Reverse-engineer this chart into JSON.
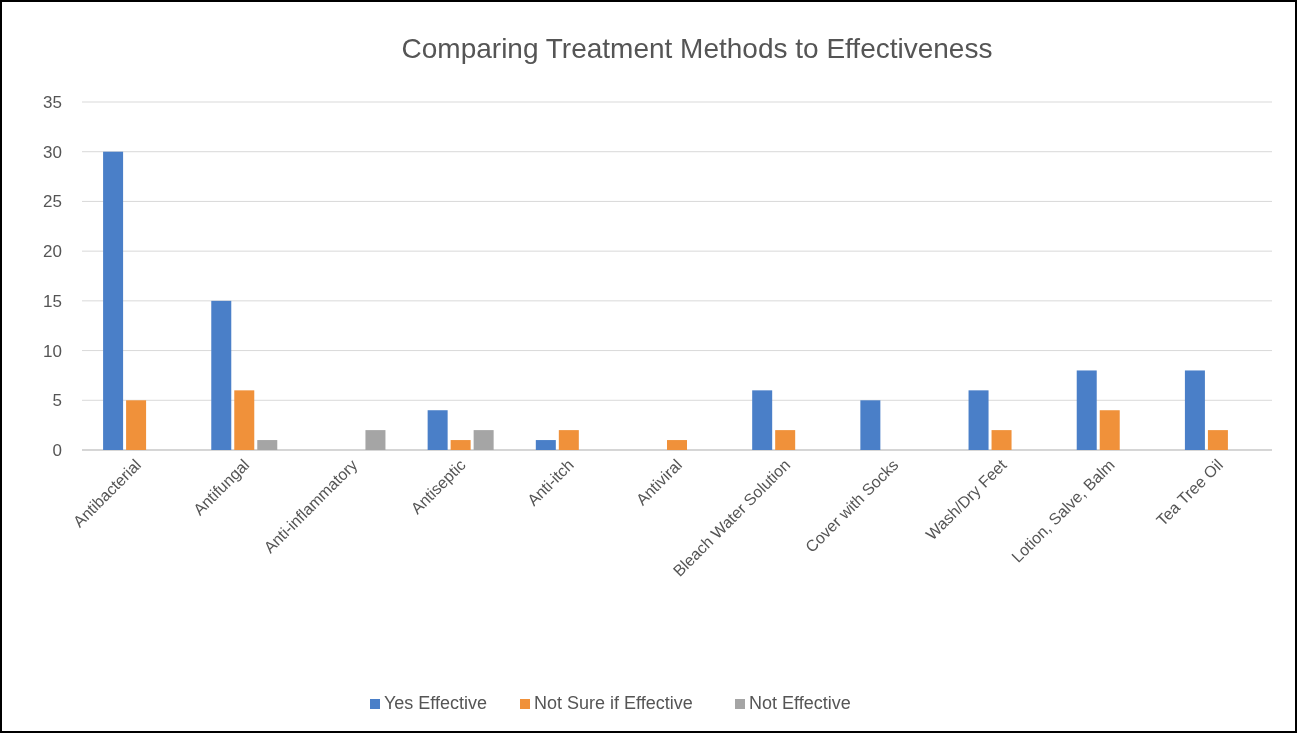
{
  "chart_data": {
    "type": "bar",
    "title": "Comparing Treatment Methods to Effectiveness",
    "categories": [
      "Antibacterial",
      "Antifungal",
      "Anti-inflammatory",
      "Antiseptic",
      "Anti-itch",
      "Antiviral",
      "Bleach Water Solution",
      "Cover with Socks",
      "Wash/Dry Feet",
      "Lotion, Salve, Balm",
      "Tea Tree Oil"
    ],
    "series": [
      {
        "name": "Yes Effective",
        "color": "#4a7fc8",
        "values": [
          30,
          15,
          0,
          4,
          1,
          0,
          6,
          5,
          6,
          8,
          8
        ]
      },
      {
        "name": "Not Sure if Effective",
        "color": "#f0913a",
        "values": [
          5,
          6,
          0,
          1,
          2,
          1,
          2,
          0,
          2,
          4,
          2
        ]
      },
      {
        "name": "Not Effective",
        "color": "#a5a5a5",
        "values": [
          0,
          1,
          2,
          2,
          0,
          0,
          0,
          0,
          0,
          0,
          0
        ]
      }
    ],
    "ylim": [
      0,
      35
    ],
    "yticks": [
      0,
      5,
      10,
      15,
      20,
      25,
      30,
      35
    ],
    "grid": "y",
    "legend": "bottom"
  }
}
